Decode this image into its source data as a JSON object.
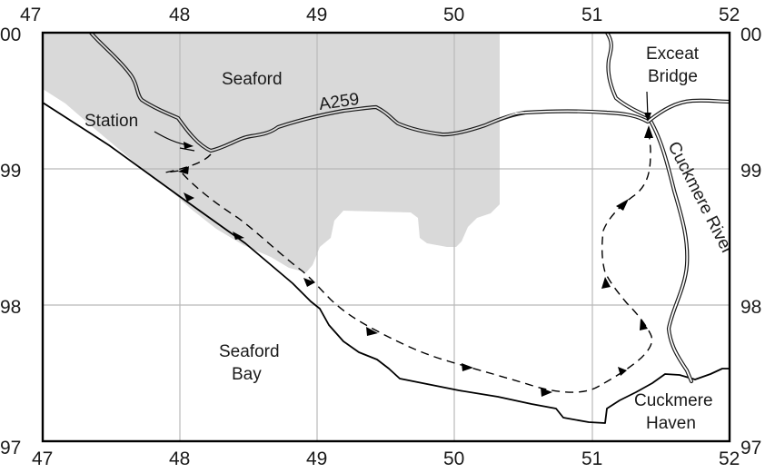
{
  "map": {
    "x_ticks": [
      "47",
      "48",
      "49",
      "50",
      "51",
      "52"
    ],
    "y_ticks_left": [
      "00",
      "99",
      "98",
      "97"
    ],
    "y_ticks_right": [
      "00",
      "99",
      "98",
      "97"
    ],
    "labels": {
      "seaford": "Seaford",
      "road": "A259",
      "station": "Station",
      "exceat_line1": "Exceat",
      "exceat_line2": "Bridge",
      "river": "Cuckmere River",
      "bay_line1": "Seaford",
      "bay_line2": "Bay",
      "haven_line1": "Cuckmere",
      "haven_line2": "Haven"
    },
    "colors": {
      "town_fill": "#d9d9d9",
      "grid": "#b9b9b9",
      "line": "#000000"
    }
  }
}
